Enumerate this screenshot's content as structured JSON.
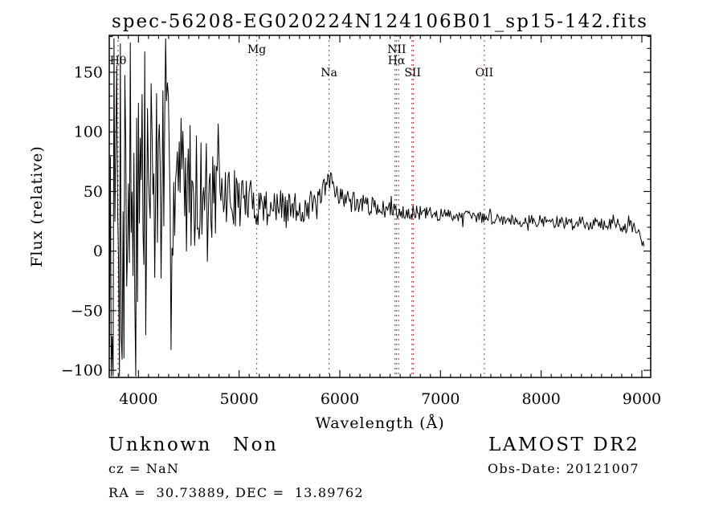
{
  "figure": {
    "title": "spec-56208-EG020224N124106B01_sp15-142.fits",
    "background_color": "#ffffff",
    "trace_color": "#000000"
  },
  "annotations": {
    "class_label": "Unknown",
    "subclass_label": "Non",
    "cz_line": "cz = NaN",
    "radec_line": "RA =  30.73889, DEC =  13.89762",
    "survey": "LAMOST DR2",
    "obs_date_line": "Obs-Date: 20121007"
  },
  "chart_data": {
    "type": "line",
    "title": "spec-56208-EG020224N124106B01_sp15-142.fits",
    "xlabel": "Wavelength (Å)",
    "ylabel": "Flux (relative)",
    "xlim": [
      3710,
      9088
    ],
    "ylim": [
      -106,
      181
    ],
    "grid": false,
    "xticks": [
      {
        "v": 4000,
        "label": "4000"
      },
      {
        "v": 5000,
        "label": "5000"
      },
      {
        "v": 6000,
        "label": "6000"
      },
      {
        "v": 7000,
        "label": "7000"
      },
      {
        "v": 8000,
        "label": "8000"
      },
      {
        "v": 9000,
        "label": "9000"
      }
    ],
    "yticks": [
      {
        "v": -100,
        "label": "−100"
      },
      {
        "v": -50,
        "label": "−50"
      },
      {
        "v": 0,
        "label": "0"
      },
      {
        "v": 50,
        "label": "50"
      },
      {
        "v": 100,
        "label": "100"
      },
      {
        "v": 150,
        "label": "150"
      }
    ],
    "x_minor_step": 100,
    "y_minor_step": 10,
    "marker_color": "#a04040",
    "line_markers": [
      {
        "label": "Hθ",
        "wavelengths": [
          3798
        ],
        "label_row": 1
      },
      {
        "label": "Mg",
        "wavelengths": [
          5175
        ],
        "label_row": 0
      },
      {
        "label": "Na",
        "wavelengths": [
          5893
        ],
        "label_row": 2
      },
      {
        "label": "NII",
        "wavelengths": [
          6548,
          6583
        ],
        "label_row": 0
      },
      {
        "label": "Hα",
        "wavelengths": [
          6563
        ],
        "label_row": 1
      },
      {
        "label": "SII",
        "wavelengths": [
          6716,
          6731
        ],
        "label_row": 2
      },
      {
        "label": "OII",
        "wavelengths": [
          7435
        ],
        "label_row": 2
      }
    ],
    "series_note": "noisy spectrum trace; envelope points are [wavelength_A, mean_flux, noise_half_amplitude]",
    "series_envelope": [
      [
        3712,
        30,
        210
      ],
      [
        3770,
        45,
        200
      ],
      [
        3860,
        50,
        180
      ],
      [
        3960,
        56,
        150
      ],
      [
        4060,
        60,
        120
      ],
      [
        4180,
        60,
        100
      ],
      [
        4320,
        60,
        80
      ],
      [
        4460,
        57,
        60
      ],
      [
        4620,
        53,
        45
      ],
      [
        4800,
        48,
        32
      ],
      [
        5000,
        43,
        23
      ],
      [
        5200,
        39,
        18
      ],
      [
        5420,
        36,
        15
      ],
      [
        5620,
        36,
        13
      ],
      [
        5780,
        39,
        13
      ],
      [
        5860,
        50,
        14
      ],
      [
        5910,
        63,
        10
      ],
      [
        5950,
        52,
        9
      ],
      [
        6050,
        44,
        9
      ],
      [
        6250,
        39,
        8
      ],
      [
        6450,
        35,
        7
      ],
      [
        6650,
        33,
        6
      ],
      [
        6900,
        31,
        6
      ],
      [
        7150,
        30,
        5
      ],
      [
        7450,
        28,
        5
      ],
      [
        7750,
        26,
        5
      ],
      [
        8050,
        25,
        5
      ],
      [
        8350,
        24,
        5
      ],
      [
        8650,
        23,
        5
      ],
      [
        8900,
        21,
        5
      ],
      [
        8980,
        15,
        5
      ],
      [
        9010,
        5,
        5
      ],
      [
        9025,
        0,
        3
      ]
    ],
    "noise_seed": 7
  }
}
